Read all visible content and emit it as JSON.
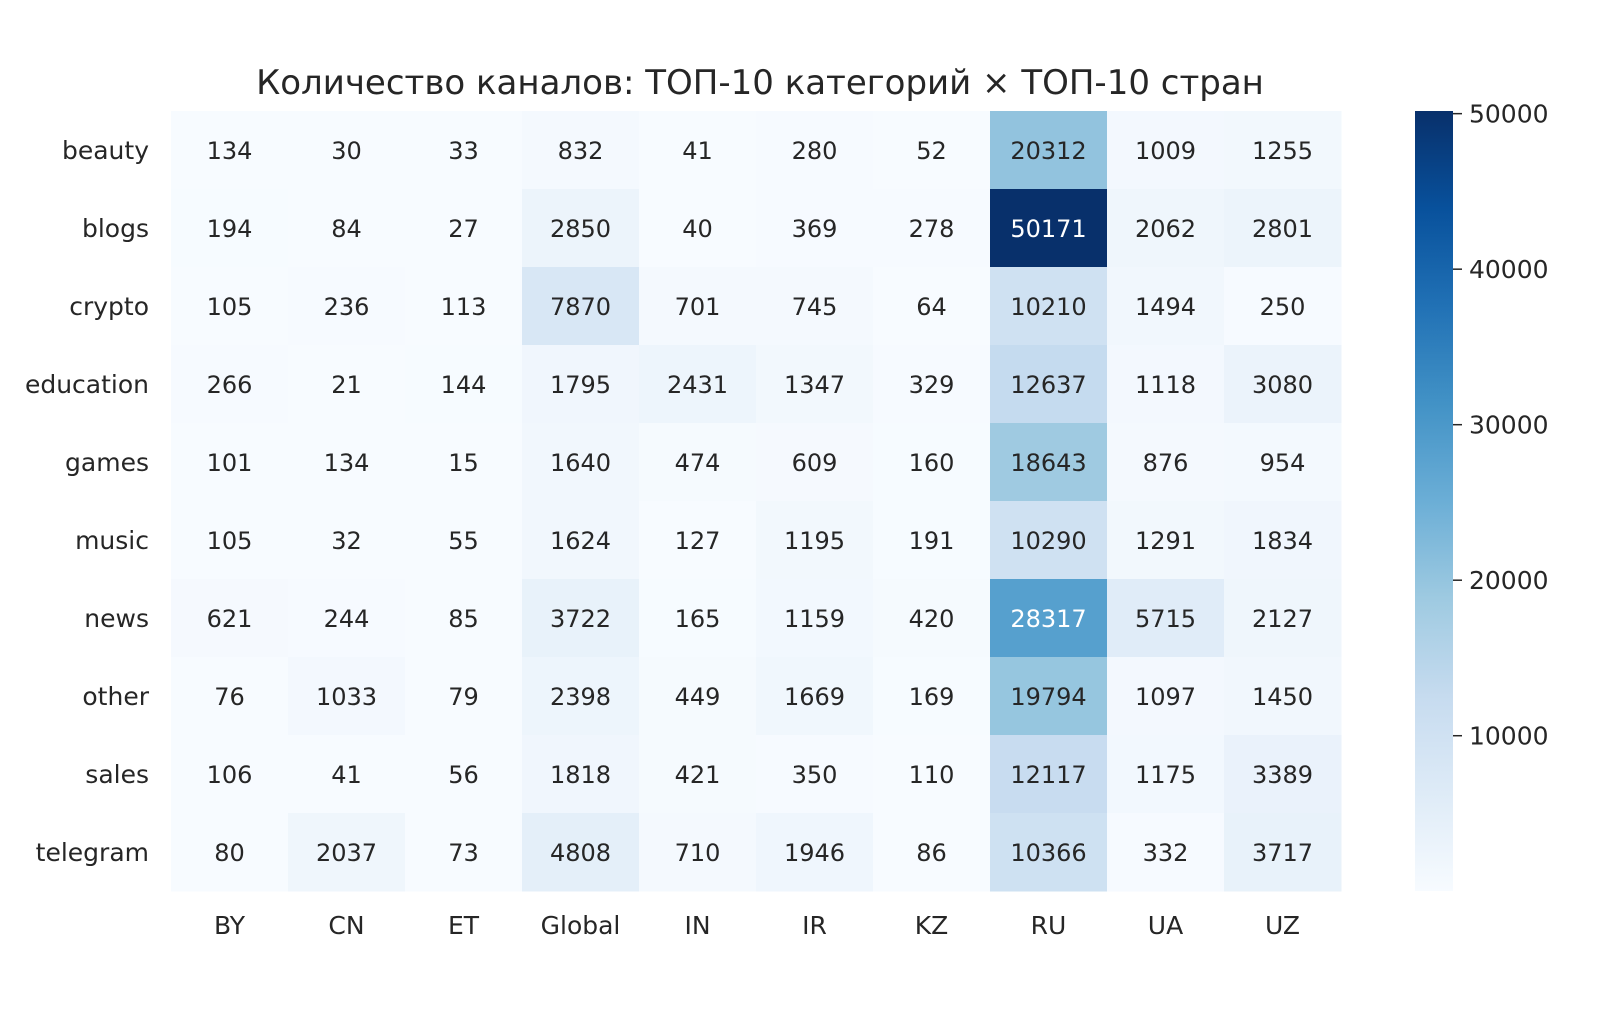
{
  "chart_data": {
    "type": "heatmap",
    "title": "Количество каналов: ТОП-10 категорий × ТОП-10 стран",
    "xlabel": "",
    "ylabel": "",
    "x_categories": [
      "BY",
      "CN",
      "ET",
      "Global",
      "IN",
      "IR",
      "KZ",
      "RU",
      "UA",
      "UZ"
    ],
    "y_categories": [
      "beauty",
      "blogs",
      "crypto",
      "education",
      "games",
      "music",
      "news",
      "other",
      "sales",
      "telegram"
    ],
    "values": [
      [
        134,
        30,
        33,
        832,
        41,
        280,
        52,
        20312,
        1009,
        1255
      ],
      [
        194,
        84,
        27,
        2850,
        40,
        369,
        278,
        50171,
        2062,
        2801
      ],
      [
        105,
        236,
        113,
        7870,
        701,
        745,
        64,
        10210,
        1494,
        250
      ],
      [
        266,
        21,
        144,
        1795,
        2431,
        1347,
        329,
        12637,
        1118,
        3080
      ],
      [
        101,
        134,
        15,
        1640,
        474,
        609,
        160,
        18643,
        876,
        954
      ],
      [
        105,
        32,
        55,
        1624,
        127,
        1195,
        191,
        10290,
        1291,
        1834
      ],
      [
        621,
        244,
        85,
        3722,
        165,
        1159,
        420,
        28317,
        5715,
        2127
      ],
      [
        76,
        1033,
        79,
        2398,
        449,
        1669,
        169,
        19794,
        1097,
        1450
      ],
      [
        106,
        41,
        56,
        1818,
        421,
        350,
        110,
        12117,
        1175,
        3389
      ],
      [
        80,
        2037,
        73,
        4808,
        710,
        1946,
        86,
        10366,
        332,
        3717
      ]
    ],
    "colormap": "Blues",
    "value_range": [
      15,
      50171
    ],
    "colorbar": {
      "ticks": [
        10000,
        20000,
        30000,
        40000,
        50000
      ],
      "tick_labels": [
        "10000",
        "20000",
        "30000",
        "40000",
        "50000"
      ]
    },
    "grid": false,
    "annotations": "cell values printed in each cell"
  }
}
